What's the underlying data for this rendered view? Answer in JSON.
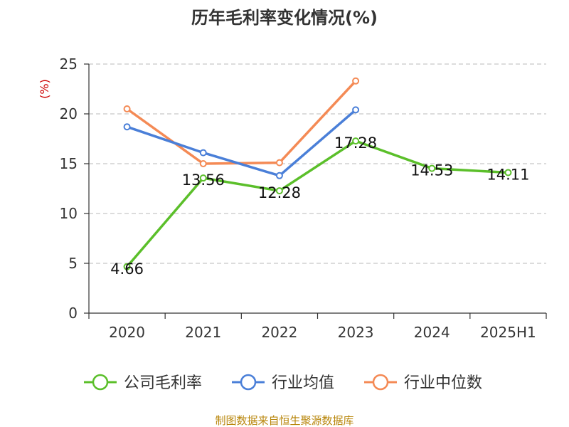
{
  "chart_data": {
    "type": "line",
    "title": "历年毛利率变化情况(%)",
    "ylabel": "(%)",
    "xlabel": "",
    "categories": [
      "2020",
      "2021",
      "2022",
      "2023",
      "2024",
      "2025H1"
    ],
    "ylim": [
      0,
      25
    ],
    "yticks": [
      "0",
      "5",
      "10",
      "15",
      "20",
      "25"
    ],
    "grid": true,
    "legend_position": "bottom",
    "series": [
      {
        "name": "公司毛利率",
        "color": "#5bbf2a",
        "values": [
          4.66,
          13.56,
          12.28,
          17.28,
          14.53,
          14.11
        ],
        "labels": [
          "4.66",
          "13.56",
          "12.28",
          "17.28",
          "14.53",
          "14.11"
        ]
      },
      {
        "name": "行业均值",
        "color": "#4a7fd8",
        "values": [
          18.7,
          16.1,
          13.8,
          20.4,
          null,
          null
        ]
      },
      {
        "name": "行业中位数",
        "color": "#f48a55",
        "values": [
          20.5,
          15.0,
          15.1,
          23.3,
          null,
          null
        ]
      }
    ]
  },
  "source": "制图数据来自恒生聚源数据库"
}
